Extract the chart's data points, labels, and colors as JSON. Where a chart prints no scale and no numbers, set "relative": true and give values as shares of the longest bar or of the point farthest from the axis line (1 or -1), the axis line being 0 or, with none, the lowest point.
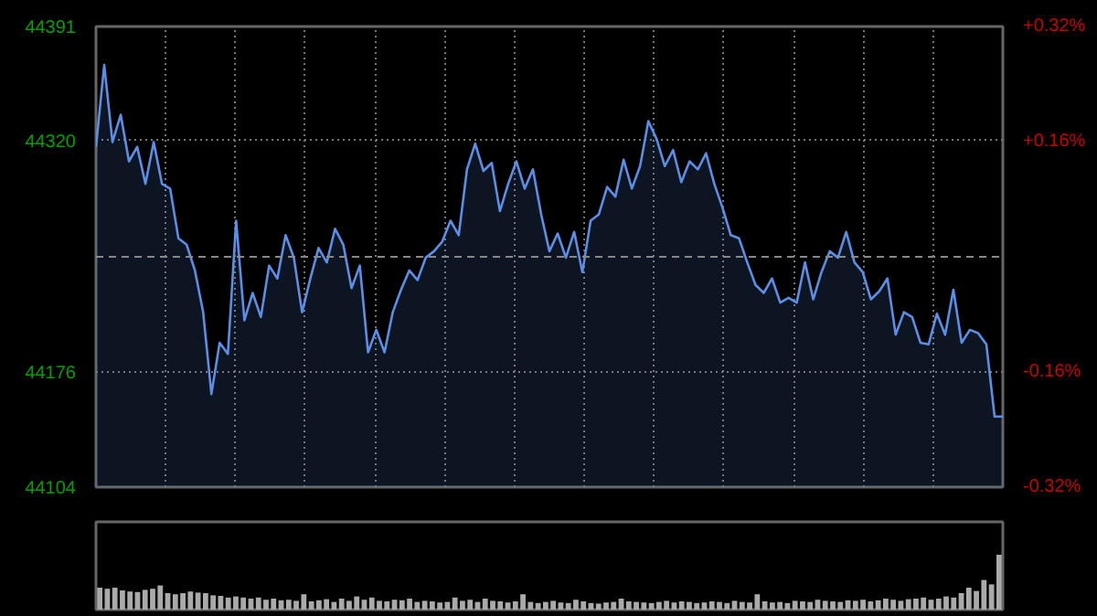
{
  "chart_data": [
    {
      "type": "area",
      "tick_labels": "y",
      "grid": true,
      "categories": [
        null,
        null,
        null,
        null,
        null,
        null,
        null,
        null,
        null,
        null,
        null,
        null,
        null,
        null,
        null,
        null,
        null,
        null,
        null,
        null,
        null,
        null,
        null,
        null,
        null,
        null,
        null,
        null,
        null,
        null,
        null,
        null,
        null,
        null,
        null,
        null,
        null,
        null,
        null,
        null,
        null,
        null,
        null,
        null,
        null,
        null,
        null,
        null,
        null,
        null,
        null,
        null,
        null,
        null,
        null,
        null,
        null,
        null,
        null,
        null,
        null,
        null,
        null,
        null,
        null,
        null,
        null,
        null,
        null,
        null,
        null,
        null,
        null,
        null,
        null,
        null,
        null,
        null,
        null,
        null,
        null,
        null,
        null,
        null,
        null,
        null,
        null,
        null,
        null,
        null,
        null,
        null,
        null,
        null,
        null,
        null,
        null,
        null,
        null,
        null,
        null,
        null,
        null,
        null,
        null,
        null,
        null,
        null,
        null,
        null,
        null
      ],
      "series": [
        {
          "color": "#5b8ee6",
          "values": [
            44316,
            44367,
            44319,
            44336,
            44307,
            44316,
            44293,
            44319,
            44293,
            44290,
            44259,
            44255,
            44239,
            44213,
            44162,
            44194,
            44187,
            44270,
            44208,
            44225,
            44210,
            44242,
            44234,
            44261,
            44247,
            44213,
            44234,
            44253,
            44244,
            44265,
            44255,
            44228,
            44242,
            44188,
            44202,
            44188,
            44213,
            44227,
            44239,
            44233,
            44247,
            44251,
            44257,
            44270,
            44261,
            44302,
            44318,
            44301,
            44306,
            44276,
            44293,
            44307,
            44290,
            44302,
            44274,
            44251,
            44262,
            44247,
            44263,
            44238,
            44270,
            44274,
            44291,
            44285,
            44308,
            44290,
            44304,
            44332,
            44321,
            44304,
            44314,
            44294,
            44307,
            44302,
            44312,
            44293,
            44278,
            44261,
            44259,
            44244,
            44230,
            44225,
            44234,
            44219,
            44222,
            44219,
            44244,
            44221,
            44238,
            44251,
            44247,
            44263,
            44244,
            44238,
            44221,
            44226,
            44234,
            44199,
            44213,
            44210,
            44194,
            44193,
            44212,
            44199,
            44227,
            44194,
            44202,
            44200,
            44193,
            44148,
            44148
          ]
        }
      ],
      "ylim": [
        44104,
        44391
      ],
      "yticks": [
        44104,
        44176,
        44320,
        44391
      ],
      "y2lim": [
        -0.32,
        0.32
      ],
      "y2ticks": [
        {
          "value": -0.32,
          "label": "-0.32%"
        },
        {
          "value": -0.16,
          "label": "-0.16%"
        },
        {
          "value": 0.16,
          "label": "+0.16%"
        },
        {
          "value": 0.32,
          "label": "+0.32%"
        }
      ],
      "ref_lines": [
        {
          "axis": "y",
          "value": 44247.5,
          "color": "#888888",
          "line_style": "dashed"
        }
      ]
    },
    {
      "type": "bar",
      "relative": true,
      "color": "#aaaaaa",
      "categories": [
        null,
        null,
        null,
        null,
        null,
        null,
        null,
        null,
        null,
        null,
        null,
        null,
        null,
        null,
        null,
        null,
        null,
        null,
        null,
        null,
        null,
        null,
        null,
        null,
        null,
        null,
        null,
        null,
        null,
        null,
        null,
        null,
        null,
        null,
        null,
        null,
        null,
        null,
        null,
        null,
        null,
        null,
        null,
        null,
        null,
        null,
        null,
        null,
        null,
        null,
        null,
        null,
        null,
        null,
        null,
        null,
        null,
        null,
        null,
        null,
        null,
        null,
        null,
        null,
        null,
        null,
        null,
        null,
        null,
        null,
        null,
        null,
        null,
        null,
        null,
        null,
        null,
        null,
        null,
        null,
        null,
        null,
        null,
        null,
        null,
        null,
        null,
        null,
        null,
        null,
        null,
        null,
        null,
        null,
        null,
        null,
        null,
        null,
        null,
        null,
        null,
        null,
        null,
        null,
        null,
        null,
        null,
        null,
        null,
        null,
        null,
        null,
        null,
        null,
        null,
        null,
        null,
        null,
        null,
        null
      ],
      "values": [
        0.4,
        0.38,
        0.4,
        0.35,
        0.33,
        0.32,
        0.36,
        0.38,
        0.44,
        0.3,
        0.28,
        0.3,
        0.33,
        0.31,
        0.3,
        0.26,
        0.25,
        0.22,
        0.24,
        0.22,
        0.2,
        0.22,
        0.18,
        0.2,
        0.17,
        0.18,
        0.16,
        0.28,
        0.15,
        0.17,
        0.19,
        0.14,
        0.2,
        0.16,
        0.24,
        0.18,
        0.22,
        0.16,
        0.15,
        0.18,
        0.17,
        0.2,
        0.14,
        0.16,
        0.15,
        0.13,
        0.14,
        0.22,
        0.16,
        0.18,
        0.14,
        0.2,
        0.16,
        0.15,
        0.13,
        0.15,
        0.28,
        0.14,
        0.12,
        0.14,
        0.16,
        0.13,
        0.12,
        0.18,
        0.15,
        0.12,
        0.11,
        0.13,
        0.14,
        0.2,
        0.15,
        0.14,
        0.13,
        0.12,
        0.14,
        0.16,
        0.13,
        0.15,
        0.14,
        0.12,
        0.13,
        0.15,
        0.14,
        0.12,
        0.16,
        0.14,
        0.13,
        0.28,
        0.15,
        0.13,
        0.14,
        0.12,
        0.16,
        0.15,
        0.14,
        0.18,
        0.16,
        0.15,
        0.14,
        0.17,
        0.16,
        0.18,
        0.15,
        0.17,
        0.2,
        0.18,
        0.16,
        0.19,
        0.2,
        0.22,
        0.18,
        0.2,
        0.24,
        0.22,
        0.3,
        0.4,
        0.34,
        0.54,
        0.46,
        1.0
      ]
    }
  ]
}
